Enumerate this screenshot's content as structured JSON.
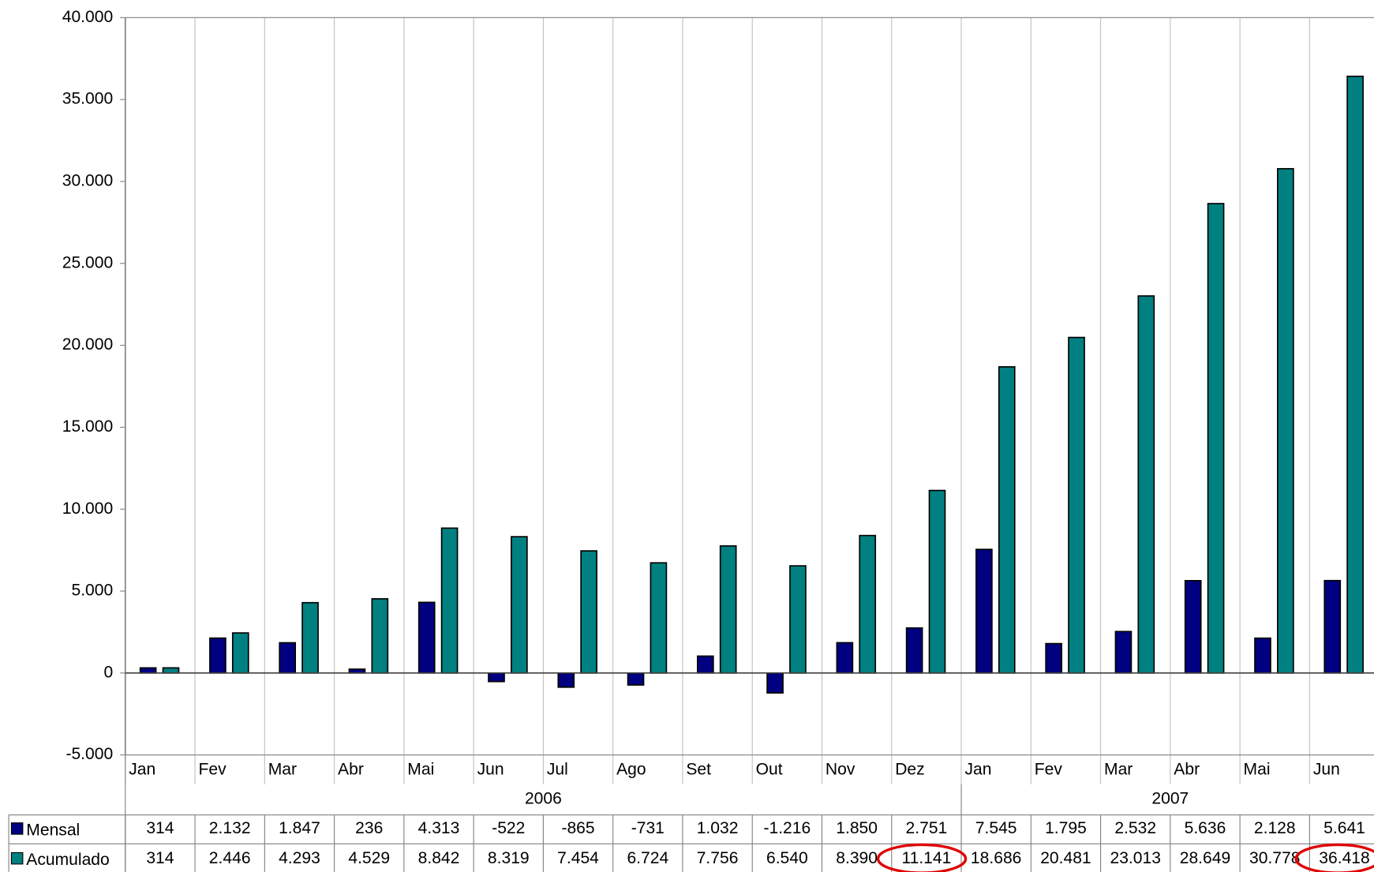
{
  "chart_data": {
    "type": "bar",
    "categories": [
      "Jan",
      "Fev",
      "Mar",
      "Abr",
      "Mai",
      "Jun",
      "Jul",
      "Ago",
      "Set",
      "Out",
      "Nov",
      "Dez",
      "Jan",
      "Fev",
      "Mar",
      "Abr",
      "Mai",
      "Jun"
    ],
    "groups": [
      {
        "label": "2006",
        "span": 12
      },
      {
        "label": "2007",
        "span": 6
      }
    ],
    "series": [
      {
        "name": "Mensal",
        "color": "#000080",
        "values": [
          314,
          2132,
          1847,
          236,
          4313,
          -522,
          -865,
          -731,
          1032,
          -1216,
          1850,
          2751,
          7545,
          1795,
          2532,
          5636,
          2128,
          5641
        ],
        "value_labels": [
          "314",
          "2.132",
          "1.847",
          "236",
          "4.313",
          "-522",
          "-865",
          "-731",
          "1.032",
          "-1.216",
          "1.850",
          "2.751",
          "7.545",
          "1.795",
          "2.532",
          "5.636",
          "2.128",
          "5.641"
        ]
      },
      {
        "name": "Acumulado",
        "color": "#008080",
        "values": [
          314,
          2446,
          4293,
          4529,
          8842,
          8319,
          7454,
          6724,
          7756,
          6540,
          8390,
          11141,
          18686,
          20481,
          23013,
          28649,
          30778,
          36418
        ],
        "value_labels": [
          "314",
          "2.446",
          "4.293",
          "4.529",
          "8.842",
          "8.319",
          "7.454",
          "6.724",
          "7.756",
          "6.540",
          "8.390",
          "11.141",
          "18.686",
          "20.481",
          "23.013",
          "28.649",
          "30.778",
          "36.418"
        ]
      }
    ],
    "ylim": [
      -5000,
      40000
    ],
    "yticks": [
      {
        "value": -5000,
        "label": "-5.000"
      },
      0,
      {
        "value": 5000,
        "label": "5.000"
      },
      {
        "value": 10000,
        "label": "10.000"
      },
      {
        "value": 15000,
        "label": "15.000"
      },
      {
        "value": 20000,
        "label": "20.000"
      },
      {
        "value": 25000,
        "label": "25.000"
      },
      {
        "value": 30000,
        "label": "30.000"
      },
      {
        "value": 35000,
        "label": "35.000"
      },
      {
        "value": 40000,
        "label": "40.000"
      }
    ],
    "grid": true
  }
}
